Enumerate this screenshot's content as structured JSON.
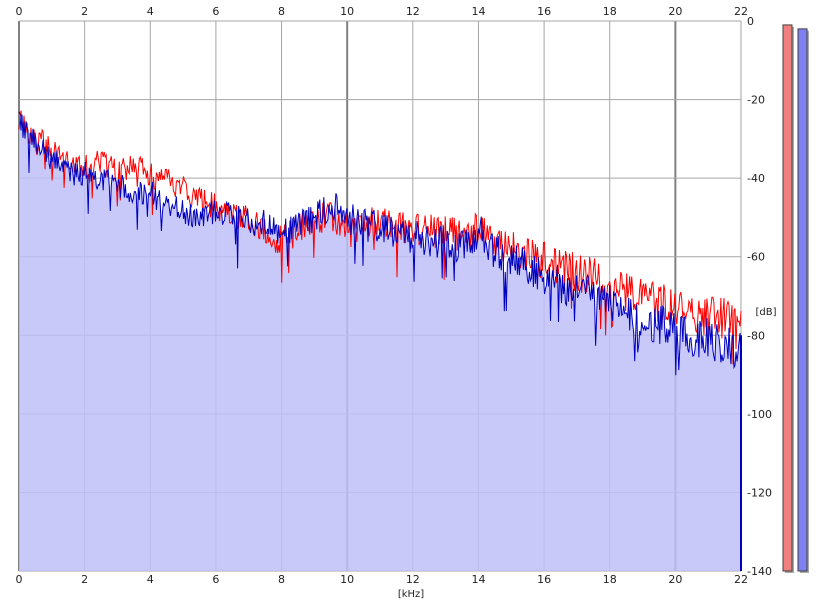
{
  "chart_data": {
    "type": "line",
    "title": "",
    "xlabel": "[kHz]",
    "ylabel": "[dB]",
    "xlim": [
      0,
      22
    ],
    "ylim": [
      -140,
      0
    ],
    "grid": true,
    "x_ticks": [
      "0",
      "2",
      "4",
      "6",
      "8",
      "10",
      "12",
      "14",
      "16",
      "18",
      "20",
      "22"
    ],
    "y_ticks": [
      "0",
      "-20",
      "-40",
      "-60",
      "-80",
      "-100",
      "-120",
      "-140"
    ],
    "colors": {
      "left": "#ff0000",
      "right": "#0000c0",
      "fill": "#c0c0f8",
      "meter_left": "#f08080",
      "meter_right": "#8080f0"
    },
    "series": [
      {
        "key": "left",
        "x": [
          0,
          0.25,
          0.5,
          0.75,
          1,
          1.5,
          2,
          2.5,
          3,
          3.5,
          4,
          4.5,
          5,
          5.5,
          6,
          6.5,
          7,
          7.5,
          8,
          8.5,
          9,
          9.5,
          10,
          10.5,
          11,
          11.5,
          12,
          12.5,
          13,
          13.5,
          14,
          14.5,
          15,
          15.5,
          16,
          16.5,
          17,
          17.5,
          18,
          18.5,
          19,
          19.5,
          20,
          20.5,
          21,
          21.5,
          22
        ],
        "values": [
          -25,
          -28,
          -30,
          -31,
          -33,
          -36,
          -37,
          -36,
          -38,
          -37,
          -39,
          -41,
          -43,
          -46,
          -47,
          -49,
          -50,
          -54,
          -56,
          -53,
          -50,
          -50,
          -52,
          -53,
          -50,
          -52,
          -53,
          -53,
          -54,
          -55,
          -52,
          -57,
          -58,
          -60,
          -61,
          -63,
          -64,
          -65,
          -67,
          -69,
          -71,
          -72,
          -73,
          -74,
          -75,
          -76,
          -79
        ]
      },
      {
        "key": "right",
        "x": [
          0,
          0.25,
          0.5,
          0.75,
          1,
          1.5,
          2,
          2.5,
          3,
          3.5,
          4,
          4.5,
          5,
          5.5,
          6,
          6.5,
          7,
          7.5,
          8,
          8.5,
          9,
          9.5,
          10,
          10.5,
          11,
          11.5,
          12,
          12.5,
          13,
          13.5,
          14,
          14.5,
          15,
          15.5,
          16,
          16.5,
          17,
          17.5,
          18,
          18.5,
          19,
          19.5,
          20,
          20.5,
          21,
          21.5,
          22
        ],
        "values": [
          -25,
          -29,
          -31,
          -33,
          -35,
          -38,
          -39,
          -40,
          -42,
          -43,
          -44,
          -46,
          -48,
          -50,
          -49,
          -50,
          -51,
          -52,
          -54,
          -52,
          -50,
          -47,
          -50,
          -52,
          -52,
          -54,
          -55,
          -56,
          -56,
          -58,
          -53,
          -59,
          -61,
          -63,
          -65,
          -67,
          -69,
          -70,
          -72,
          -74,
          -76,
          -77,
          -79,
          -80,
          -81,
          -82,
          -84
        ]
      }
    ],
    "meters": [
      {
        "key": "left",
        "level_db": -1
      },
      {
        "key": "right",
        "level_db": -2
      }
    ]
  }
}
